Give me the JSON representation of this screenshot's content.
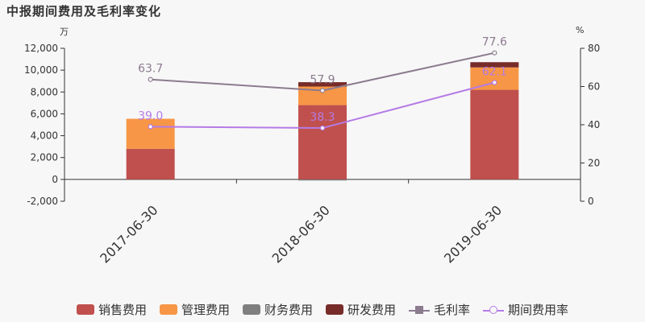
{
  "title": "中报期间费用及毛利率变化",
  "left_unit": "万",
  "right_unit": "%",
  "chart_data": {
    "type": "bar",
    "categories": [
      "2017-06-30",
      "2018-06-30",
      "2019-06-30"
    ],
    "left_axis": {
      "ylim": [
        -2000,
        12000
      ],
      "ticks": [
        -2000,
        0,
        2000,
        4000,
        6000,
        8000,
        10000,
        12000
      ],
      "tick_labels": [
        "-2,000",
        "0",
        "2,000",
        "4,000",
        "6,000",
        "8,000",
        "10,000",
        "12,000"
      ]
    },
    "right_axis": {
      "ylim": [
        0,
        80
      ],
      "ticks": [
        0,
        20,
        40,
        60,
        80
      ],
      "tick_labels": [
        "0",
        "20",
        "40",
        "60",
        "80"
      ]
    },
    "series": [
      {
        "name": "销售费用",
        "type": "bar",
        "stack": true,
        "color": "#c0504d",
        "values": [
          2800,
          6800,
          8200
        ]
      },
      {
        "name": "管理费用",
        "type": "bar",
        "stack": true,
        "color": "#f79646",
        "values": [
          2750,
          1700,
          2050
        ]
      },
      {
        "name": "财务费用",
        "type": "bar",
        "stack": true,
        "color": "#7f7f7f",
        "values": [
          0,
          -100,
          0
        ]
      },
      {
        "name": "研发费用",
        "type": "bar",
        "stack": true,
        "color": "#772c2a",
        "values": [
          0,
          400,
          480
        ]
      },
      {
        "name": "毛利率",
        "type": "line",
        "axis": "right",
        "color": "#8c7b8f",
        "values": [
          63.7,
          57.9,
          77.6
        ],
        "labels": [
          "63.7",
          "57.9",
          "77.6"
        ]
      },
      {
        "name": "期间费用率",
        "type": "line",
        "axis": "right",
        "color": "#b57be6",
        "values": [
          39.0,
          38.3,
          62.1
        ],
        "labels": [
          "39.0",
          "38.3",
          "62.1"
        ]
      }
    ]
  }
}
